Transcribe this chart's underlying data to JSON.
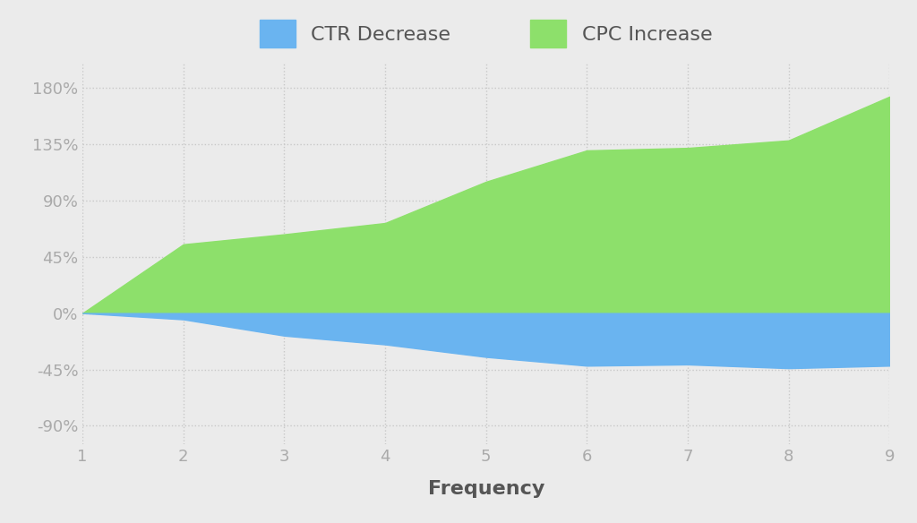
{
  "x": [
    1,
    2,
    3,
    4,
    5,
    6,
    7,
    8,
    9
  ],
  "ctr_decrease": [
    0,
    -5,
    -18,
    -25,
    -35,
    -42,
    -41,
    -44,
    -42
  ],
  "cpc_increase": [
    0,
    55,
    63,
    72,
    105,
    130,
    132,
    138,
    173
  ],
  "ctr_color": "#6ab4f0",
  "cpc_color": "#8de06b",
  "background_color": "#ebebeb",
  "plot_bg_color": "#ebebeb",
  "grid_color": "#c8c8c8",
  "ytick_labels": [
    "-90%",
    "-45%",
    "0%",
    "45%",
    "90%",
    "135%",
    "180%"
  ],
  "ytick_values": [
    -90,
    -45,
    0,
    45,
    90,
    135,
    180
  ],
  "ylim": [
    -105,
    200
  ],
  "xlim": [
    1,
    9
  ],
  "xlabel": "Frequency",
  "xlabel_fontsize": 16,
  "tick_fontsize": 13,
  "legend_fontsize": 16,
  "tick_color": "#aaaaaa"
}
